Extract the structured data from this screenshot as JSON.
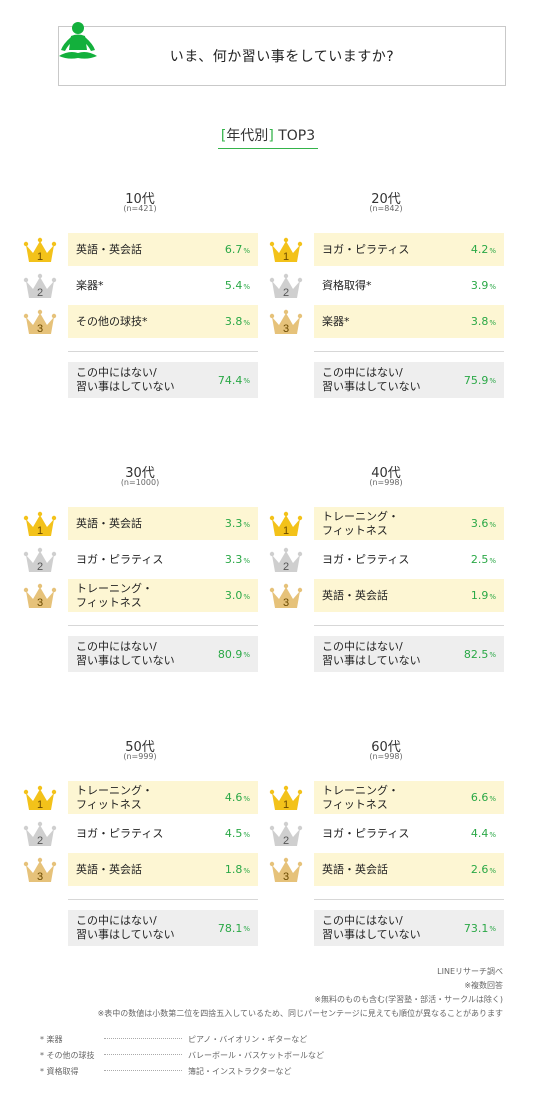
{
  "header": {
    "title": "いま、何か習い事をしていますか?",
    "icon": "yoga-meditation-icon",
    "icon_color": "#13b03c"
  },
  "section": {
    "open": "[",
    "title": "年代別",
    "close": "]",
    "suffix": "TOP3"
  },
  "colors": {
    "accent": "#34b34a",
    "highlight": "#fdf6d3",
    "none_bg": "#eeeeee",
    "gold": "#f3c21a",
    "silver": "#cfcfcf",
    "bronze": "#e6c27a"
  },
  "chart_data": {
    "type": "table",
    "unit": "%",
    "groups": [
      {
        "age": "10代",
        "n": "(n=421)",
        "ranks": [
          {
            "rank": "1",
            "label": "英語・英会話",
            "value": "6.7"
          },
          {
            "rank": "2",
            "label": "楽器*",
            "value": "5.4"
          },
          {
            "rank": "3",
            "label": "その他の球技*",
            "value": "3.8"
          }
        ],
        "none": {
          "label": [
            "この中にはない/",
            "習い事はしていない"
          ],
          "value": "74.4"
        }
      },
      {
        "age": "20代",
        "n": "(n=842)",
        "ranks": [
          {
            "rank": "1",
            "label": "ヨガ・ピラティス",
            "value": "4.2"
          },
          {
            "rank": "2",
            "label": "資格取得*",
            "value": "3.9"
          },
          {
            "rank": "3",
            "label": "楽器*",
            "value": "3.8"
          }
        ],
        "none": {
          "label": [
            "この中にはない/",
            "習い事はしていない"
          ],
          "value": "75.9"
        }
      },
      {
        "age": "30代",
        "n": "(n=1000)",
        "ranks": [
          {
            "rank": "1",
            "label": "英語・英会話",
            "value": "3.3"
          },
          {
            "rank": "2",
            "label": "ヨガ・ピラティス",
            "value": "3.3"
          },
          {
            "rank": "3",
            "label": "トレーニング・\nフィットネス",
            "value": "3.0"
          }
        ],
        "none": {
          "label": [
            "この中にはない/",
            "習い事はしていない"
          ],
          "value": "80.9"
        }
      },
      {
        "age": "40代",
        "n": "(n=998)",
        "ranks": [
          {
            "rank": "1",
            "label": "トレーニング・\nフィットネス",
            "value": "3.6"
          },
          {
            "rank": "2",
            "label": "ヨガ・ピラティス",
            "value": "2.5"
          },
          {
            "rank": "3",
            "label": "英語・英会話",
            "value": "1.9"
          }
        ],
        "none": {
          "label": [
            "この中にはない/",
            "習い事はしていない"
          ],
          "value": "82.5"
        }
      },
      {
        "age": "50代",
        "n": "(n=999)",
        "ranks": [
          {
            "rank": "1",
            "label": "トレーニング・\nフィットネス",
            "value": "4.6"
          },
          {
            "rank": "2",
            "label": "ヨガ・ピラティス",
            "value": "4.5"
          },
          {
            "rank": "3",
            "label": "英語・英会話",
            "value": "1.8"
          }
        ],
        "none": {
          "label": [
            "この中にはない/",
            "習い事はしていない"
          ],
          "value": "78.1"
        }
      },
      {
        "age": "60代",
        "n": "(n=998)",
        "ranks": [
          {
            "rank": "1",
            "label": "トレーニング・\nフィットネス",
            "value": "6.6"
          },
          {
            "rank": "2",
            "label": "ヨガ・ピラティス",
            "value": "4.4"
          },
          {
            "rank": "3",
            "label": "英語・英会話",
            "value": "2.6"
          }
        ],
        "none": {
          "label": [
            "この中にはない/",
            "習い事はしていない"
          ],
          "value": "73.1"
        }
      }
    ]
  },
  "notes": [
    "LINEリサーチ調べ",
    "※複数回答",
    "※無料のものも含む(学習塾・部活・サークルは除く)",
    "※表中の数値は小数第二位を四捨五入しているため、同じパーセンテージに見えても順位が異なることがあります"
  ],
  "footnotes": [
    {
      "term": "* 楽器",
      "desc": "ピアノ・バイオリン・ギターなど"
    },
    {
      "term": "* その他の球技",
      "desc": "バレーボール・バスケットボールなど"
    },
    {
      "term": "* 資格取得",
      "desc": "簿記・インストラクターなど"
    }
  ]
}
